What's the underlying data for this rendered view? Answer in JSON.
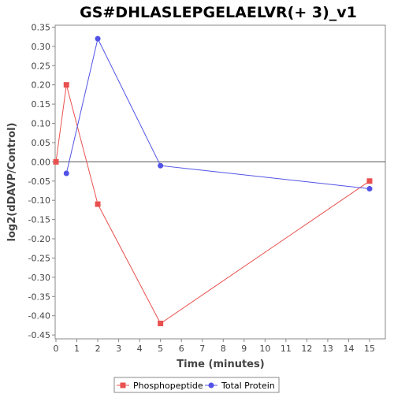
{
  "chart_data": {
    "type": "line",
    "title": "GS#DHLASLEPGELAELVR(+ 3)_v1",
    "xlabel": "Time (minutes)",
    "ylabel": "log2(dDAVP/Control)",
    "xlim": [
      0,
      15.5
    ],
    "ylim": [
      -0.46,
      0.355
    ],
    "xticks": [
      0,
      1,
      2,
      3,
      4,
      5,
      6,
      7,
      8,
      9,
      10,
      11,
      12,
      13,
      14,
      15
    ],
    "xtick_labels": [
      "0",
      "1",
      "2",
      "3",
      "4",
      "5",
      "6",
      "7",
      "8",
      "9",
      "10",
      "11",
      "12",
      "13",
      "14",
      "15"
    ],
    "yticks": [
      0.35,
      0.3,
      0.25,
      0.2,
      0.15,
      0.1,
      0.05,
      0.0,
      -0.05,
      -0.1,
      -0.15,
      -0.2,
      -0.25,
      -0.3,
      -0.35,
      -0.4,
      -0.45
    ],
    "ytick_labels": [
      "0.35",
      "0.30",
      "0.25",
      "0.20",
      "0.15",
      "0.10",
      "0.05",
      "0.00",
      "-0.05",
      "-0.10",
      "-0.15",
      "-0.20",
      "-0.25",
      "-0.30",
      "-0.35",
      "-0.40",
      "-0.45"
    ],
    "grid": false,
    "zero_line": true,
    "legend_position": "bottom",
    "series": [
      {
        "name": "Phosphopeptide",
        "color": "#e8514f",
        "marker": "square",
        "x": [
          0,
          0.5,
          2,
          5,
          15
        ],
        "y": [
          0.0,
          0.2,
          -0.11,
          -0.42,
          -0.05
        ]
      },
      {
        "name": "Total Protein",
        "color": "#5252e6",
        "marker": "circle",
        "x": [
          0.5,
          2,
          5,
          15
        ],
        "y": [
          -0.03,
          0.32,
          -0.01,
          -0.07
        ]
      }
    ]
  }
}
